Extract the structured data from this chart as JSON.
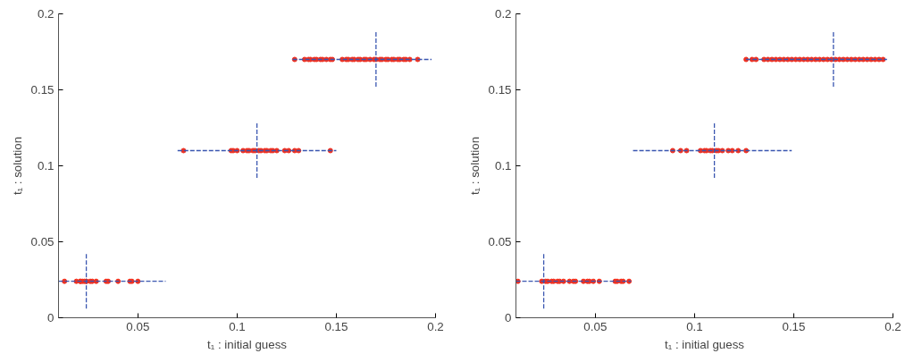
{
  "chart_data": [
    {
      "type": "scatter",
      "xlabel": "t₁ : initial guess",
      "ylabel": "t₁ : solution",
      "xlim": [
        0.01,
        0.2
      ],
      "ylim": [
        0,
        0.2
      ],
      "xticks": [
        0.05,
        0.1,
        0.15,
        0.2
      ],
      "yticks": [
        0,
        0.05,
        0.1,
        0.15,
        0.2
      ],
      "grid": false,
      "series": [
        {
          "type": "line",
          "color": "#3a56b0",
          "line_style": "dashed",
          "marker": "none",
          "x": [
            0.01,
            0.064
          ],
          "values": [
            0.024,
            0.024
          ]
        },
        {
          "type": "line",
          "color": "#3a56b0",
          "line_style": "dashed",
          "marker": "none",
          "x": [
            0.024,
            0.024
          ],
          "values": [
            0.006,
            0.042
          ]
        },
        {
          "type": "line",
          "color": "#3a56b0",
          "line_style": "dashed",
          "marker": "none",
          "x": [
            0.07,
            0.15
          ],
          "values": [
            0.11,
            0.11
          ]
        },
        {
          "type": "line",
          "color": "#3a56b0",
          "line_style": "dashed",
          "marker": "none",
          "x": [
            0.11,
            0.11
          ],
          "values": [
            0.092,
            0.128
          ]
        },
        {
          "type": "line",
          "color": "#3a56b0",
          "line_style": "dashed",
          "marker": "none",
          "x": [
            0.128,
            0.198
          ],
          "values": [
            0.17,
            0.17
          ]
        },
        {
          "type": "line",
          "color": "#3a56b0",
          "line_style": "dashed",
          "marker": "none",
          "x": [
            0.17,
            0.17
          ],
          "values": [
            0.152,
            0.188
          ]
        },
        {
          "color": "#f03020",
          "marker": "circle",
          "x": [
            0.013,
            0.019,
            0.021,
            0.021,
            0.022,
            0.023,
            0.024,
            0.024,
            0.026,
            0.027,
            0.029,
            0.034,
            0.035,
            0.04,
            0.046,
            0.047,
            0.05,
            0.073,
            0.097,
            0.098,
            0.1,
            0.103,
            0.105,
            0.106,
            0.108,
            0.109,
            0.111,
            0.112,
            0.114,
            0.115,
            0.117,
            0.118,
            0.12,
            0.124,
            0.126,
            0.129,
            0.131,
            0.147,
            0.129,
            0.134,
            0.136,
            0.137,
            0.139,
            0.14,
            0.142,
            0.143,
            0.145,
            0.147,
            0.148,
            0.153,
            0.155,
            0.156,
            0.158,
            0.159,
            0.161,
            0.162,
            0.164,
            0.165,
            0.167,
            0.169,
            0.17,
            0.172,
            0.173,
            0.175,
            0.176,
            0.178,
            0.179,
            0.181,
            0.182,
            0.184,
            0.185,
            0.187,
            0.191
          ],
          "values": [
            0.024,
            0.024,
            0.024,
            0.024,
            0.024,
            0.024,
            0.024,
            0.024,
            0.024,
            0.024,
            0.024,
            0.024,
            0.024,
            0.024,
            0.024,
            0.024,
            0.024,
            0.11,
            0.11,
            0.11,
            0.11,
            0.11,
            0.11,
            0.11,
            0.11,
            0.11,
            0.11,
            0.11,
            0.11,
            0.11,
            0.11,
            0.11,
            0.11,
            0.11,
            0.11,
            0.11,
            0.11,
            0.11,
            0.17,
            0.17,
            0.17,
            0.17,
            0.17,
            0.17,
            0.17,
            0.17,
            0.17,
            0.17,
            0.17,
            0.17,
            0.17,
            0.17,
            0.17,
            0.17,
            0.17,
            0.17,
            0.17,
            0.17,
            0.17,
            0.17,
            0.17,
            0.17,
            0.17,
            0.17,
            0.17,
            0.17,
            0.17,
            0.17,
            0.17,
            0.17,
            0.17,
            0.17,
            0.17
          ]
        }
      ]
    },
    {
      "type": "scatter",
      "xlabel": "t₁ : initial guess",
      "ylabel": "t₁ : solution",
      "xlim": [
        0.01,
        0.2
      ],
      "ylim": [
        0,
        0.2
      ],
      "xticks": [
        0.05,
        0.1,
        0.15,
        0.2
      ],
      "yticks": [
        0,
        0.05,
        0.1,
        0.15,
        0.2
      ],
      "grid": false,
      "series": [
        {
          "type": "line",
          "color": "#3a56b0",
          "line_style": "dashed",
          "marker": "none",
          "x": [
            0.01,
            0.068
          ],
          "values": [
            0.024,
            0.024
          ]
        },
        {
          "type": "line",
          "color": "#3a56b0",
          "line_style": "dashed",
          "marker": "none",
          "x": [
            0.024,
            0.024
          ],
          "values": [
            0.006,
            0.042
          ]
        },
        {
          "type": "line",
          "color": "#3a56b0",
          "line_style": "dashed",
          "marker": "none",
          "x": [
            0.069,
            0.149
          ],
          "values": [
            0.11,
            0.11
          ]
        },
        {
          "type": "line",
          "color": "#3a56b0",
          "line_style": "dashed",
          "marker": "none",
          "x": [
            0.11,
            0.11
          ],
          "values": [
            0.092,
            0.128
          ]
        },
        {
          "type": "line",
          "color": "#3a56b0",
          "line_style": "dashed",
          "marker": "none",
          "x": [
            0.126,
            0.197
          ],
          "values": [
            0.17,
            0.17
          ]
        },
        {
          "type": "line",
          "color": "#3a56b0",
          "line_style": "dashed",
          "marker": "none",
          "x": [
            0.17,
            0.17
          ],
          "values": [
            0.152,
            0.188
          ]
        },
        {
          "color": "#f03020",
          "marker": "circle",
          "x": [
            0.011,
            0.023,
            0.025,
            0.026,
            0.028,
            0.029,
            0.031,
            0.032,
            0.034,
            0.037,
            0.039,
            0.04,
            0.044,
            0.046,
            0.047,
            0.049,
            0.052,
            0.06,
            0.061,
            0.063,
            0.064,
            0.067,
            0.089,
            0.093,
            0.096,
            0.103,
            0.105,
            0.106,
            0.108,
            0.109,
            0.111,
            0.112,
            0.114,
            0.117,
            0.119,
            0.122,
            0.126,
            0.126,
            0.129,
            0.131,
            0.135,
            0.137,
            0.139,
            0.141,
            0.143,
            0.145,
            0.147,
            0.149,
            0.151,
            0.153,
            0.155,
            0.157,
            0.159,
            0.161,
            0.163,
            0.165,
            0.167,
            0.169,
            0.171,
            0.173,
            0.175,
            0.177,
            0.179,
            0.181,
            0.183,
            0.185,
            0.187,
            0.189,
            0.191,
            0.193,
            0.195
          ],
          "values": [
            0.024,
            0.024,
            0.024,
            0.024,
            0.024,
            0.024,
            0.024,
            0.024,
            0.024,
            0.024,
            0.024,
            0.024,
            0.024,
            0.024,
            0.024,
            0.024,
            0.024,
            0.024,
            0.024,
            0.024,
            0.024,
            0.024,
            0.11,
            0.11,
            0.11,
            0.11,
            0.11,
            0.11,
            0.11,
            0.11,
            0.11,
            0.11,
            0.11,
            0.11,
            0.11,
            0.11,
            0.11,
            0.17,
            0.17,
            0.17,
            0.17,
            0.17,
            0.17,
            0.17,
            0.17,
            0.17,
            0.17,
            0.17,
            0.17,
            0.17,
            0.17,
            0.17,
            0.17,
            0.17,
            0.17,
            0.17,
            0.17,
            0.17,
            0.17,
            0.17,
            0.17,
            0.17,
            0.17,
            0.17,
            0.17,
            0.17,
            0.17,
            0.17,
            0.17,
            0.17,
            0.17
          ]
        }
      ]
    }
  ]
}
